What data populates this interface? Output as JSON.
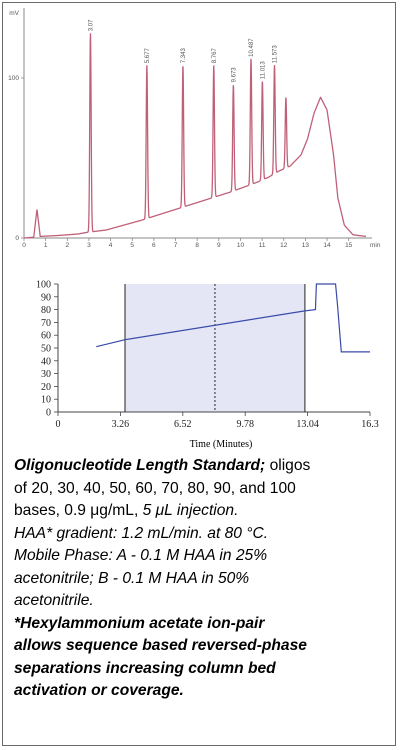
{
  "chromatogram": {
    "type": "line",
    "y_unit": "mV",
    "x_unit": "min",
    "x_ticks": [
      "0",
      "1",
      "2",
      "3",
      "4",
      "5",
      "6",
      "7",
      "8",
      "9",
      "10",
      "11",
      "12",
      "13",
      "14",
      "15"
    ],
    "y_ticks": [
      "0",
      "100"
    ],
    "xlim": [
      0,
      15.8
    ],
    "ylim": [
      0,
      135
    ],
    "baseline": [
      [
        0,
        0
      ],
      [
        0.45,
        0.5
      ],
      [
        0.6,
        18
      ],
      [
        0.75,
        1
      ],
      [
        1.5,
        1.5
      ],
      [
        2.5,
        2.5
      ],
      [
        2.9,
        3.5
      ],
      [
        3.8,
        5
      ],
      [
        4.6,
        8
      ],
      [
        5.4,
        11
      ],
      [
        6.1,
        14
      ],
      [
        6.8,
        17
      ],
      [
        7.5,
        20
      ],
      [
        8.2,
        23
      ],
      [
        8.9,
        26
      ],
      [
        9.6,
        29
      ],
      [
        10.2,
        32
      ],
      [
        10.8,
        35
      ],
      [
        11.3,
        38
      ],
      [
        11.8,
        42
      ],
      [
        12.3,
        45
      ],
      [
        12.8,
        52
      ],
      [
        13.1,
        62
      ],
      [
        13.4,
        78
      ],
      [
        13.7,
        88
      ],
      [
        14.0,
        80
      ],
      [
        14.3,
        52
      ],
      [
        14.5,
        25
      ],
      [
        14.8,
        8
      ],
      [
        15.2,
        2
      ],
      [
        15.8,
        1
      ]
    ],
    "peaks": [
      {
        "t": 3.07,
        "h": 128,
        "label": "3.07"
      },
      {
        "t": 5.677,
        "h": 108,
        "label": "5.677"
      },
      {
        "t": 7.343,
        "h": 108,
        "label": "7.343"
      },
      {
        "t": 8.767,
        "h": 108,
        "label": "8.767"
      },
      {
        "t": 9.673,
        "h": 96,
        "label": "9.673"
      },
      {
        "t": 10.487,
        "h": 112,
        "label": "10.487"
      },
      {
        "t": 11.013,
        "h": 98,
        "label": "11.013"
      },
      {
        "t": 11.573,
        "h": 108,
        "label": "11.573"
      },
      {
        "t": 12.1,
        "h": 88,
        "label": ""
      }
    ]
  },
  "gradient": {
    "type": "line",
    "xlabel": "Time (Minutes)",
    "x_ticks": [
      "0",
      "3.26",
      "6.52",
      "9.78",
      "13.04",
      "16.3"
    ],
    "y_ticks": [
      "0",
      "10",
      "20",
      "30",
      "40",
      "50",
      "60",
      "70",
      "80",
      "90",
      "100"
    ],
    "xlim": [
      0,
      16.3
    ],
    "ylim": [
      0,
      100
    ],
    "points": [
      [
        2.0,
        51
      ],
      [
        3.5,
        56.5
      ],
      [
        12.9,
        79
      ],
      [
        13.45,
        80
      ],
      [
        13.5,
        100
      ],
      [
        14.5,
        100
      ],
      [
        14.6,
        84
      ],
      [
        14.8,
        47
      ],
      [
        16.3,
        47
      ]
    ],
    "shaded_region": [
      3.5,
      12.9
    ],
    "markers_solid": [
      3.5,
      12.9
    ],
    "marker_dotted": 8.2
  },
  "caption": {
    "l1a": "Oligonucleotide Length Standard;",
    "l1b": " oligos",
    "l2": "of 20, 30, 40, 50, 60, 70, 80, 90, and 100",
    "l3a": "bases, 0.9 μg/mL, ",
    "l3b": "5 μL injection.",
    "l4": "HAA* gradient: 1.2 mL/min. at 80 °C.",
    "l5": "Mobile Phase: A -  0.1 M HAA in 25%",
    "l6": "acetonitrile; B -  0.1 M HAA in 50%",
    "l7": "acetonitrile.",
    "l8": "*Hexylammonium acetate ion-pair",
    "l9": "allows sequence based reversed-phase",
    "l10": "separations increasing column bed",
    "l11": "activation or coverage."
  },
  "colors": {
    "trace": "#c06078",
    "gradient": "#3a4aa8",
    "shade": "#e4e6f6"
  }
}
